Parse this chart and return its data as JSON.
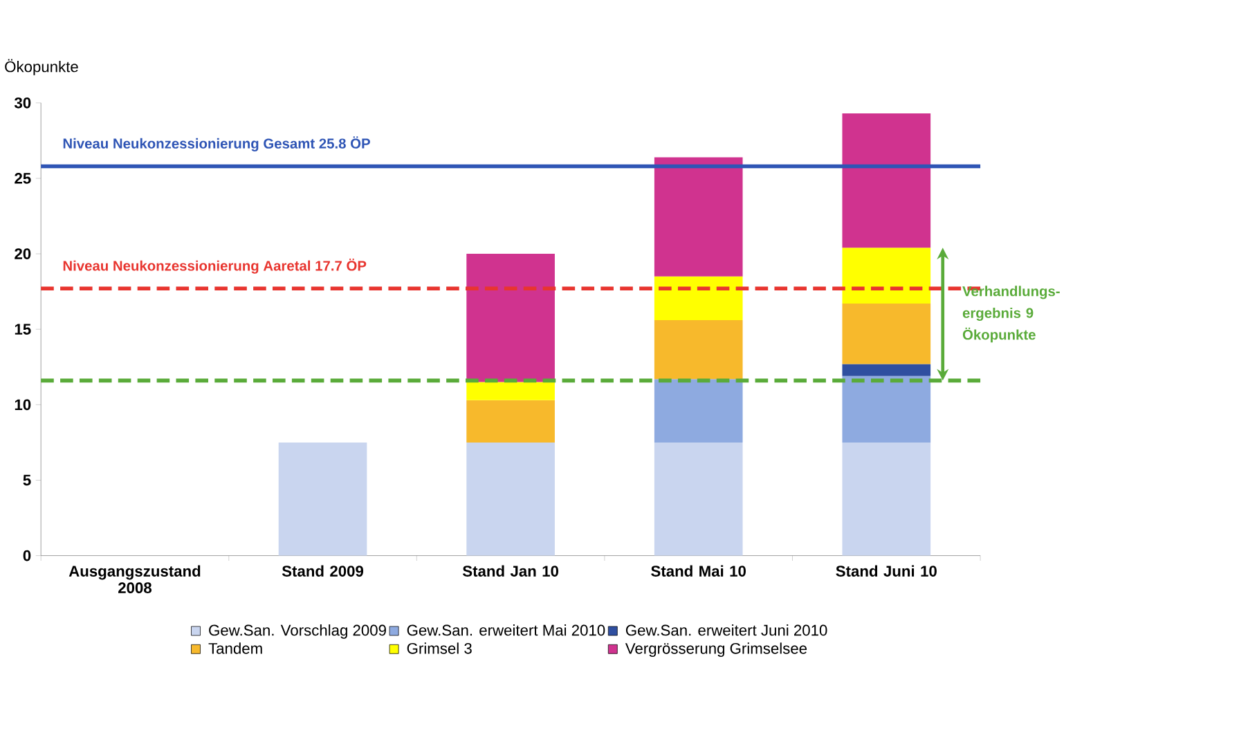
{
  "chart_data": {
    "type": "bar",
    "stacked": true,
    "ylabel": "Ökopunkte",
    "categories": [
      "Ausgangszustand 2008",
      "Stand 2009",
      "Stand Jan 10",
      "Stand Mai 10",
      "Stand Juni 10"
    ],
    "series": [
      {
        "name": "Gew.San. Vorschlag 2009",
        "color": "#c9d5ef",
        "values": [
          null,
          7.5,
          7.5,
          7.5,
          7.5
        ]
      },
      {
        "name": "Gew.San. erweitert Mai 2010",
        "color": "#8eaae0",
        "values": [
          null,
          null,
          null,
          4.2,
          4.4
        ]
      },
      {
        "name": "Gew.San. erweitert Juni 2010",
        "color": "#2f4fa0",
        "values": [
          null,
          null,
          null,
          null,
          0.8
        ]
      },
      {
        "name": "Tandem",
        "color": "#f7b92c",
        "values": [
          null,
          null,
          2.8,
          3.9,
          4.0
        ]
      },
      {
        "name": "Grimsel 3",
        "color": "#ffff00",
        "values": [
          null,
          null,
          1.2,
          2.9,
          3.7
        ]
      },
      {
        "name": "Vergrösserung Grimselsee",
        "color": "#d0338f",
        "values": [
          null,
          null,
          8.5,
          7.9,
          8.9
        ]
      }
    ],
    "ylim": [
      0,
      30
    ],
    "yticks": [
      0,
      5,
      10,
      15,
      20,
      25,
      30
    ],
    "ref_lines": [
      {
        "axis": "y",
        "value": 25.8,
        "label": "Niveau Neukonzessionierung Gesamt 25.8 ÖP",
        "color": "#2f55b5",
        "line_style": "solid"
      },
      {
        "axis": "y",
        "value": 17.7,
        "label": "Niveau Neukonzessionierung Aaretal 17.7 ÖP",
        "color": "#e8352f",
        "line_style": "dashed"
      },
      {
        "axis": "y",
        "value": 11.6,
        "color": "#5aab3a",
        "line_style": "dashed"
      }
    ],
    "annotations": [
      "Verhandlungs-ergebnis 9 Ökopunkte"
    ],
    "legend": "bottom",
    "grid": false
  }
}
